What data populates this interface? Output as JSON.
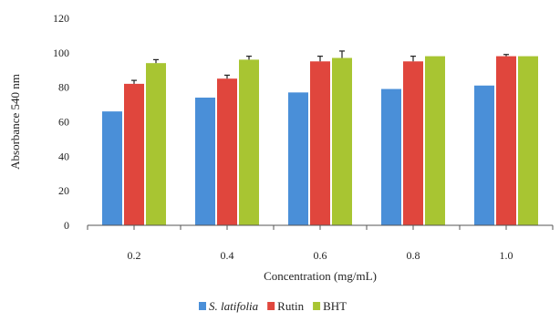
{
  "chart_data": {
    "type": "bar",
    "title": "",
    "xlabel": "Concentration (mg/mL)",
    "ylabel": "Absorbance 540 nm",
    "categories": [
      "0.2",
      "0.4",
      "0.6",
      "0.8",
      "1.0"
    ],
    "ylim": [
      0,
      120
    ],
    "yticks": [
      "0",
      "20",
      "40",
      "60",
      "80",
      "100",
      "120"
    ],
    "grid": false,
    "legend_position": "bottom-center",
    "series": [
      {
        "name": "S. latifolia",
        "italic": true,
        "color": "#4a8fd8",
        "values": [
          66,
          74,
          77,
          79,
          81
        ],
        "errors": [
          0,
          0,
          0,
          0,
          0
        ]
      },
      {
        "name": "Rutin",
        "italic": false,
        "color": "#e0463d",
        "values": [
          82,
          85,
          95,
          95,
          98
        ],
        "errors": [
          2,
          2,
          3,
          3,
          1
        ]
      },
      {
        "name": "BHT",
        "italic": false,
        "color": "#a8c532",
        "values": [
          94,
          96,
          97,
          98,
          98
        ],
        "errors": [
          2,
          2,
          4,
          0,
          0
        ]
      }
    ]
  }
}
